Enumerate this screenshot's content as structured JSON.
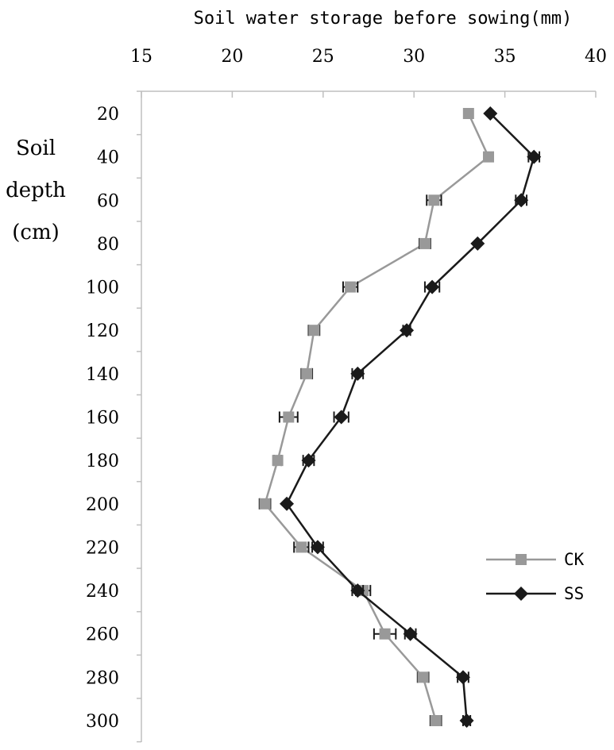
{
  "chart_data": {
    "type": "line",
    "xlabel": "Soil water storage before sowing(mm)",
    "ylabel_lines": [
      "Soil",
      "depth",
      "(cm)"
    ],
    "xlim": [
      15,
      40
    ],
    "xticks": [
      15,
      20,
      25,
      30,
      35,
      40
    ],
    "ylim": [
      20,
      300
    ],
    "yticks": [
      20,
      40,
      60,
      80,
      100,
      120,
      140,
      160,
      180,
      200,
      220,
      240,
      260,
      280,
      300
    ],
    "x_axis_position": "top",
    "y_axis_inverted": true,
    "grid": false,
    "legend_position": "lower-right",
    "series": [
      {
        "name": "CK",
        "color": "#999999",
        "marker": "square",
        "y": [
          20,
          40,
          60,
          80,
          100,
          120,
          140,
          160,
          180,
          200,
          220,
          240,
          260,
          280,
          300
        ],
        "x": [
          33.0,
          34.1,
          31.1,
          30.6,
          26.5,
          24.5,
          24.1,
          23.1,
          22.5,
          21.8,
          23.8,
          27.2,
          28.4,
          30.5,
          31.2
        ],
        "err": [
          0.0,
          0.0,
          0.4,
          0.3,
          0.4,
          0.3,
          0.3,
          0.5,
          0.2,
          0.3,
          0.4,
          0.4,
          0.6,
          0.3,
          0.3
        ]
      },
      {
        "name": "SS",
        "color": "#1a1a1a",
        "marker": "diamond",
        "y": [
          20,
          40,
          60,
          80,
          100,
          120,
          140,
          160,
          180,
          200,
          220,
          240,
          260,
          280,
          300
        ],
        "x": [
          34.2,
          36.6,
          35.9,
          33.5,
          31.0,
          29.6,
          26.9,
          26.0,
          24.2,
          23.0,
          24.7,
          26.9,
          29.8,
          32.7,
          32.9
        ],
        "err": [
          0.0,
          0.3,
          0.3,
          0.0,
          0.4,
          0.2,
          0.3,
          0.4,
          0.3,
          0.0,
          0.3,
          0.3,
          0.3,
          0.3,
          0.2
        ]
      }
    ]
  }
}
